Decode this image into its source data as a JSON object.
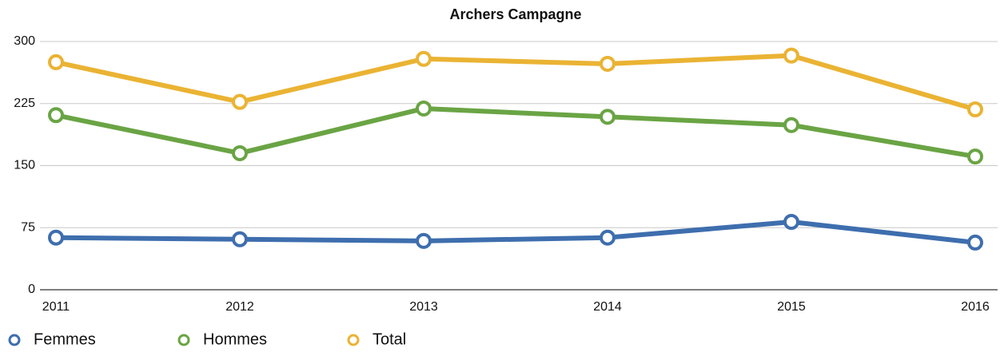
{
  "chart_data": {
    "type": "line",
    "title": "Archers Campagne",
    "categories": [
      "2011",
      "2012",
      "2013",
      "2014",
      "2015",
      "2016"
    ],
    "series": [
      {
        "name": "Femmes",
        "color": "#3e6eae",
        "values": [
          63,
          61,
          59,
          63,
          82,
          57
        ]
      },
      {
        "name": "Hommes",
        "color": "#6aa444",
        "values": [
          211,
          165,
          219,
          209,
          199,
          161
        ]
      },
      {
        "name": "Total",
        "color": "#eab333",
        "values": [
          275,
          227,
          279,
          273,
          283,
          218
        ]
      }
    ],
    "ylim": [
      0,
      300
    ],
    "yticks": [
      0,
      75,
      150,
      225,
      300
    ],
    "grid": true,
    "legend": "bottom"
  }
}
